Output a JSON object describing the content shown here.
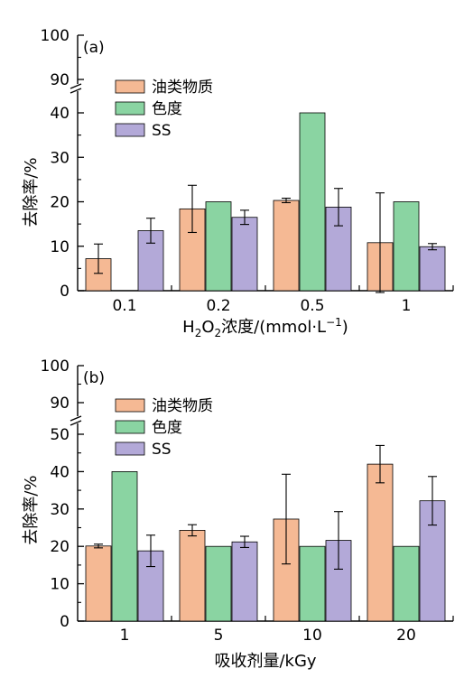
{
  "chart_data": [
    {
      "type": "bar",
      "panel_label": "(a)",
      "xlabel_main": "H",
      "xlabel_sub1": "2",
      "xlabel_mid": "O",
      "xlabel_sub2": "2",
      "xlabel_rest": "浓度/(mmol·L",
      "xlabel_sup": "−1",
      "xlabel_end": ")",
      "ylabel": "去除率/%",
      "categories": [
        "0.1",
        "0.2",
        "0.5",
        "1"
      ],
      "ylim": [
        0,
        100
      ],
      "axis_break": [
        40,
        90
      ],
      "yticks": [
        0,
        10,
        20,
        30,
        40,
        90,
        100
      ],
      "series": [
        {
          "name": "油类物质",
          "color": "#f5b994",
          "values": [
            7.2,
            18.4,
            20.3,
            10.8
          ],
          "errors": [
            3.3,
            5.3,
            0.5,
            11.2
          ]
        },
        {
          "name": "色度",
          "color": "#8ad4a2",
          "values": [
            0,
            20,
            40,
            20
          ],
          "errors": [
            0,
            0,
            0,
            0
          ]
        },
        {
          "name": "SS",
          "color": "#b3a9d8",
          "values": [
            13.5,
            16.5,
            18.8,
            9.9
          ],
          "errors": [
            2.8,
            1.6,
            4.2,
            0.7
          ]
        }
      ]
    },
    {
      "type": "bar",
      "panel_label": "(b)",
      "xlabel": "吸收剂量/kGy",
      "ylabel": "去除率/%",
      "categories": [
        "1",
        "5",
        "10",
        "20"
      ],
      "ylim": [
        0,
        100
      ],
      "axis_break": [
        50,
        90
      ],
      "yticks": [
        0,
        10,
        20,
        30,
        40,
        50,
        90,
        100
      ],
      "series": [
        {
          "name": "油类物质",
          "color": "#f5b994",
          "values": [
            20.1,
            24.3,
            27.3,
            42.0
          ],
          "errors": [
            0.5,
            1.5,
            12.0,
            5.0
          ]
        },
        {
          "name": "色度",
          "color": "#8ad4a2",
          "values": [
            40,
            20,
            20,
            20
          ],
          "errors": [
            0,
            0,
            0,
            0
          ]
        },
        {
          "name": "SS",
          "color": "#b3a9d8",
          "values": [
            18.8,
            21.2,
            21.6,
            32.2
          ],
          "errors": [
            4.2,
            1.5,
            7.7,
            6.5
          ]
        }
      ]
    }
  ]
}
